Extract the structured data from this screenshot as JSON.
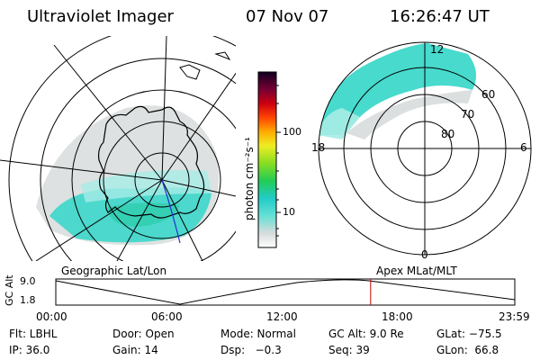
{
  "header": {
    "instrument": "Ultraviolet Imager",
    "date": "07 Nov 07",
    "time": "16:26:47 UT"
  },
  "colorbar": {
    "unit_label": "photon cm⁻²s⁻¹",
    "ticks": [
      "100",
      "10"
    ],
    "scale": "log"
  },
  "left_map": {
    "caption": "Geographic Lat/Lon"
  },
  "right_map": {
    "caption": "Apex MLat/MLT",
    "mlt_labels": {
      "top": "12",
      "left": "18",
      "right": "6",
      "bottom": "0"
    },
    "mlat_labels": [
      "60",
      "70",
      "80"
    ]
  },
  "timeline": {
    "ylabel": "GC Alt",
    "y_ticks": [
      "9.0",
      "1.8"
    ],
    "x_ticks": [
      "00:00",
      "06:00",
      "12:00",
      "18:00",
      "23:59"
    ],
    "current_time_hours": 16.45
  },
  "status": {
    "row1": {
      "flt": "Flt: LBHL",
      "door": "Door: Open",
      "mode": "Mode: Normal",
      "gcalt": "GC Alt: 9.0 Re",
      "glat": "GLat: −75.5"
    },
    "row2": {
      "ip": "IP: 36.0",
      "gain": "Gain: 14",
      "dsp": "Dsp:   −0.3",
      "seq": "Seq: 39",
      "glon": "GLon:  66.8"
    }
  },
  "colors": {
    "aurora_teal": "#33d6c8",
    "aurora_light": "#a6ece6",
    "aurora_grey": "#d8dcdc",
    "marker_red": "#cc0000",
    "track_blue": "#2233cc"
  }
}
